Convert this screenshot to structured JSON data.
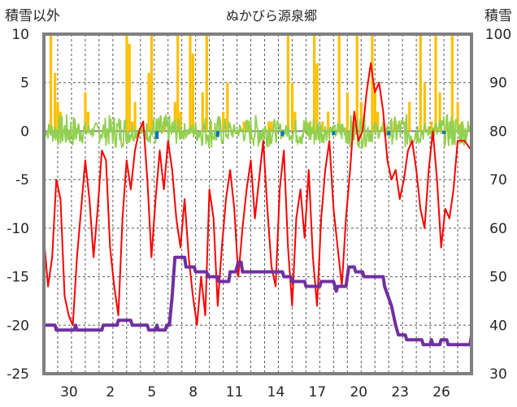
{
  "chart_data": {
    "type": "line",
    "title": "ぬかびら源泉郷",
    "left_axis_title": "積雪以外",
    "right_axis_title": "積雪",
    "left_ylim": [
      -25,
      10
    ],
    "left_yticks": [
      10,
      5,
      0,
      -5,
      -10,
      -15,
      -20,
      -25
    ],
    "right_ylim": [
      30,
      100
    ],
    "right_yticks": [
      100,
      90,
      80,
      70,
      60,
      50,
      40,
      30
    ],
    "x_range_days": [
      0,
      31
    ],
    "x_ticks": [
      {
        "day": 2,
        "label": "30"
      },
      {
        "day": 5,
        "label": "2"
      },
      {
        "day": 8,
        "label": "5"
      },
      {
        "day": 11,
        "label": "8"
      },
      {
        "day": 14,
        "label": "11"
      },
      {
        "day": 17,
        "label": "14"
      },
      {
        "day": 20,
        "label": "17"
      },
      {
        "day": 23,
        "label": "20"
      },
      {
        "day": 26,
        "label": "23"
      },
      {
        "day": 29,
        "label": "26"
      }
    ],
    "colors": {
      "precip": "#FFC000",
      "temp": "#FF0000",
      "wind": "#92D050",
      "snow": "#7030A0",
      "blue": "#0070C0",
      "grid": "#595959",
      "frame": "#7F7F7F"
    },
    "series": [
      {
        "key": "temp",
        "axis": "left",
        "points": [
          [
            0,
            -11
          ],
          [
            0.3,
            -16
          ],
          [
            0.6,
            -13
          ],
          [
            0.9,
            -5
          ],
          [
            1.2,
            -7
          ],
          [
            1.5,
            -17
          ],
          [
            1.8,
            -19
          ],
          [
            2.1,
            -20
          ],
          [
            2.4,
            -13
          ],
          [
            2.7,
            -8
          ],
          [
            3,
            -3
          ],
          [
            3.3,
            -7
          ],
          [
            3.6,
            -13
          ],
          [
            3.9,
            -8
          ],
          [
            4.2,
            -2
          ],
          [
            4.5,
            -3
          ],
          [
            4.8,
            -12
          ],
          [
            5.1,
            -16
          ],
          [
            5.4,
            -19
          ],
          [
            5.7,
            -9
          ],
          [
            6,
            -3
          ],
          [
            6.3,
            -6
          ],
          [
            6.6,
            -2
          ],
          [
            6.9,
            0
          ],
          [
            7.2,
            1
          ],
          [
            7.5,
            -5
          ],
          [
            7.8,
            -13
          ],
          [
            8.1,
            -7
          ],
          [
            8.4,
            -2
          ],
          [
            8.7,
            -6
          ],
          [
            9,
            -1
          ],
          [
            9.3,
            -4
          ],
          [
            9.6,
            -9
          ],
          [
            9.9,
            -12
          ],
          [
            10.2,
            -7
          ],
          [
            10.5,
            -13
          ],
          [
            10.8,
            -17
          ],
          [
            11.1,
            -20
          ],
          [
            11.4,
            -15
          ],
          [
            11.7,
            -19
          ],
          [
            12,
            -6
          ],
          [
            12.3,
            -9
          ],
          [
            12.6,
            -18
          ],
          [
            12.9,
            -12
          ],
          [
            13.2,
            -7
          ],
          [
            13.5,
            -4
          ],
          [
            13.8,
            -8
          ],
          [
            14.1,
            -15
          ],
          [
            14.4,
            -10
          ],
          [
            14.7,
            -6
          ],
          [
            15,
            -3
          ],
          [
            15.3,
            -9
          ],
          [
            15.6,
            -5
          ],
          [
            15.9,
            -1
          ],
          [
            16.2,
            -8
          ],
          [
            16.5,
            -14
          ],
          [
            16.8,
            -16
          ],
          [
            17.1,
            -6
          ],
          [
            17.4,
            -2
          ],
          [
            17.7,
            -12
          ],
          [
            18,
            -18
          ],
          [
            18.3,
            -9
          ],
          [
            18.6,
            -6
          ],
          [
            18.9,
            -11
          ],
          [
            19.2,
            -4
          ],
          [
            19.5,
            -13
          ],
          [
            19.8,
            -18
          ],
          [
            20.1,
            -9
          ],
          [
            20.4,
            -4
          ],
          [
            20.7,
            -1
          ],
          [
            21,
            -8
          ],
          [
            21.3,
            -12
          ],
          [
            21.6,
            -16
          ],
          [
            21.9,
            -9
          ],
          [
            22.2,
            -4
          ],
          [
            22.5,
            2
          ],
          [
            22.8,
            -1
          ],
          [
            23.1,
            0
          ],
          [
            23.4,
            4
          ],
          [
            23.7,
            7
          ],
          [
            24,
            4
          ],
          [
            24.3,
            5
          ],
          [
            24.6,
            2
          ],
          [
            24.9,
            -3
          ],
          [
            25.2,
            -5
          ],
          [
            25.5,
            -4
          ],
          [
            25.8,
            -7
          ],
          [
            26.1,
            -5
          ],
          [
            26.4,
            -2
          ],
          [
            26.7,
            -1
          ],
          [
            27,
            -4
          ],
          [
            27.3,
            -8
          ],
          [
            27.6,
            -10
          ],
          [
            27.9,
            -4
          ],
          [
            28.2,
            0
          ],
          [
            28.5,
            -5
          ],
          [
            28.8,
            -12
          ],
          [
            29.1,
            -8
          ],
          [
            29.4,
            -9
          ],
          [
            29.7,
            -6
          ],
          [
            30,
            -1
          ],
          [
            30.5,
            -1
          ],
          [
            31,
            -2
          ]
        ]
      },
      {
        "key": "snow",
        "axis": "right",
        "points": [
          [
            0,
            40
          ],
          [
            0.8,
            40
          ],
          [
            0.9,
            39
          ],
          [
            2.2,
            39
          ],
          [
            2.3,
            40
          ],
          [
            2.4,
            39
          ],
          [
            4.2,
            39
          ],
          [
            4.3,
            40
          ],
          [
            5.3,
            40
          ],
          [
            5.4,
            41
          ],
          [
            6.3,
            41
          ],
          [
            6.4,
            40
          ],
          [
            7.5,
            40
          ],
          [
            7.6,
            39
          ],
          [
            8.1,
            39
          ],
          [
            8.2,
            40
          ],
          [
            8.3,
            39
          ],
          [
            8.8,
            39
          ],
          [
            8.9,
            40
          ],
          [
            9.1,
            40
          ],
          [
            9.3,
            46
          ],
          [
            9.5,
            54
          ],
          [
            10.2,
            54
          ],
          [
            10.3,
            52
          ],
          [
            10.9,
            52
          ],
          [
            11,
            51
          ],
          [
            11.8,
            51
          ],
          [
            11.9,
            50
          ],
          [
            12.6,
            50
          ],
          [
            12.7,
            49
          ],
          [
            13.4,
            49
          ],
          [
            13.5,
            51
          ],
          [
            13.9,
            51
          ],
          [
            14.1,
            53
          ],
          [
            14.3,
            53
          ],
          [
            14.4,
            51
          ],
          [
            17.3,
            51
          ],
          [
            17.4,
            50
          ],
          [
            17.9,
            50
          ],
          [
            18,
            49
          ],
          [
            18.9,
            49
          ],
          [
            19,
            48
          ],
          [
            20,
            48
          ],
          [
            20.1,
            49
          ],
          [
            21,
            49
          ],
          [
            21.2,
            47
          ],
          [
            21.3,
            48
          ],
          [
            21.9,
            48
          ],
          [
            22.1,
            52
          ],
          [
            22.5,
            52
          ],
          [
            22.6,
            51
          ],
          [
            23.1,
            51
          ],
          [
            23.2,
            50
          ],
          [
            24.6,
            50
          ],
          [
            24.7,
            48
          ],
          [
            25.2,
            44
          ],
          [
            25.5,
            40
          ],
          [
            25.7,
            38
          ],
          [
            26.2,
            38
          ],
          [
            26.3,
            37
          ],
          [
            27.4,
            37
          ],
          [
            27.5,
            36
          ],
          [
            28,
            36
          ],
          [
            28.1,
            37
          ],
          [
            28.2,
            36
          ],
          [
            28.7,
            36
          ],
          [
            28.8,
            37
          ],
          [
            29.2,
            37
          ],
          [
            29.3,
            36
          ],
          [
            30.9,
            36
          ],
          [
            31,
            38
          ]
        ]
      }
    ],
    "precip_bars": [
      [
        0.5,
        10
      ],
      [
        0.8,
        6
      ],
      [
        1.0,
        3
      ],
      [
        1.2,
        2
      ],
      [
        3.0,
        4
      ],
      [
        3.2,
        2
      ],
      [
        6.0,
        10
      ],
      [
        6.2,
        9
      ],
      [
        6.4,
        1
      ],
      [
        6.6,
        3
      ],
      [
        7.6,
        6
      ],
      [
        7.8,
        10
      ],
      [
        8.3,
        1
      ],
      [
        8.7,
        1
      ],
      [
        9.5,
        3
      ],
      [
        9.7,
        10
      ],
      [
        9.9,
        2
      ],
      [
        10.6,
        10
      ],
      [
        10.8,
        8
      ],
      [
        11.5,
        4
      ],
      [
        11.8,
        10
      ],
      [
        12.1,
        1
      ],
      [
        13.0,
        2
      ],
      [
        13.3,
        5
      ],
      [
        14.5,
        1
      ],
      [
        14.7,
        1
      ],
      [
        16.3,
        1
      ],
      [
        16.5,
        1
      ],
      [
        17.7,
        10
      ],
      [
        18.0,
        5
      ],
      [
        18.2,
        2
      ],
      [
        19.0,
        1
      ],
      [
        19.3,
        1
      ],
      [
        19.6,
        10
      ],
      [
        19.8,
        7
      ],
      [
        20.2,
        1
      ],
      [
        20.6,
        2
      ],
      [
        21.4,
        10
      ],
      [
        22.0,
        4
      ],
      [
        22.4,
        1
      ],
      [
        22.7,
        10
      ],
      [
        23.0,
        3
      ],
      [
        23.8,
        10
      ],
      [
        24.0,
        4
      ],
      [
        24.2,
        2
      ],
      [
        24.6,
        1
      ],
      [
        25.2,
        1
      ],
      [
        25.5,
        1
      ],
      [
        26.2,
        1
      ],
      [
        26.5,
        3
      ],
      [
        27.3,
        10
      ],
      [
        27.6,
        5
      ],
      [
        28.1,
        1
      ],
      [
        28.4,
        10
      ],
      [
        28.7,
        4
      ],
      [
        29.2,
        1
      ],
      [
        29.6,
        10
      ],
      [
        30.0,
        3
      ],
      [
        30.3,
        1
      ]
    ],
    "wind_note": "",
    "blue_marks": [
      [
        8.2,
        -0.8
      ],
      [
        12.6,
        -0.6
      ],
      [
        17.3,
        -0.5
      ],
      [
        21.0,
        -0.4
      ],
      [
        25.0,
        -0.4
      ],
      [
        29.0,
        -0.3
      ]
    ]
  }
}
